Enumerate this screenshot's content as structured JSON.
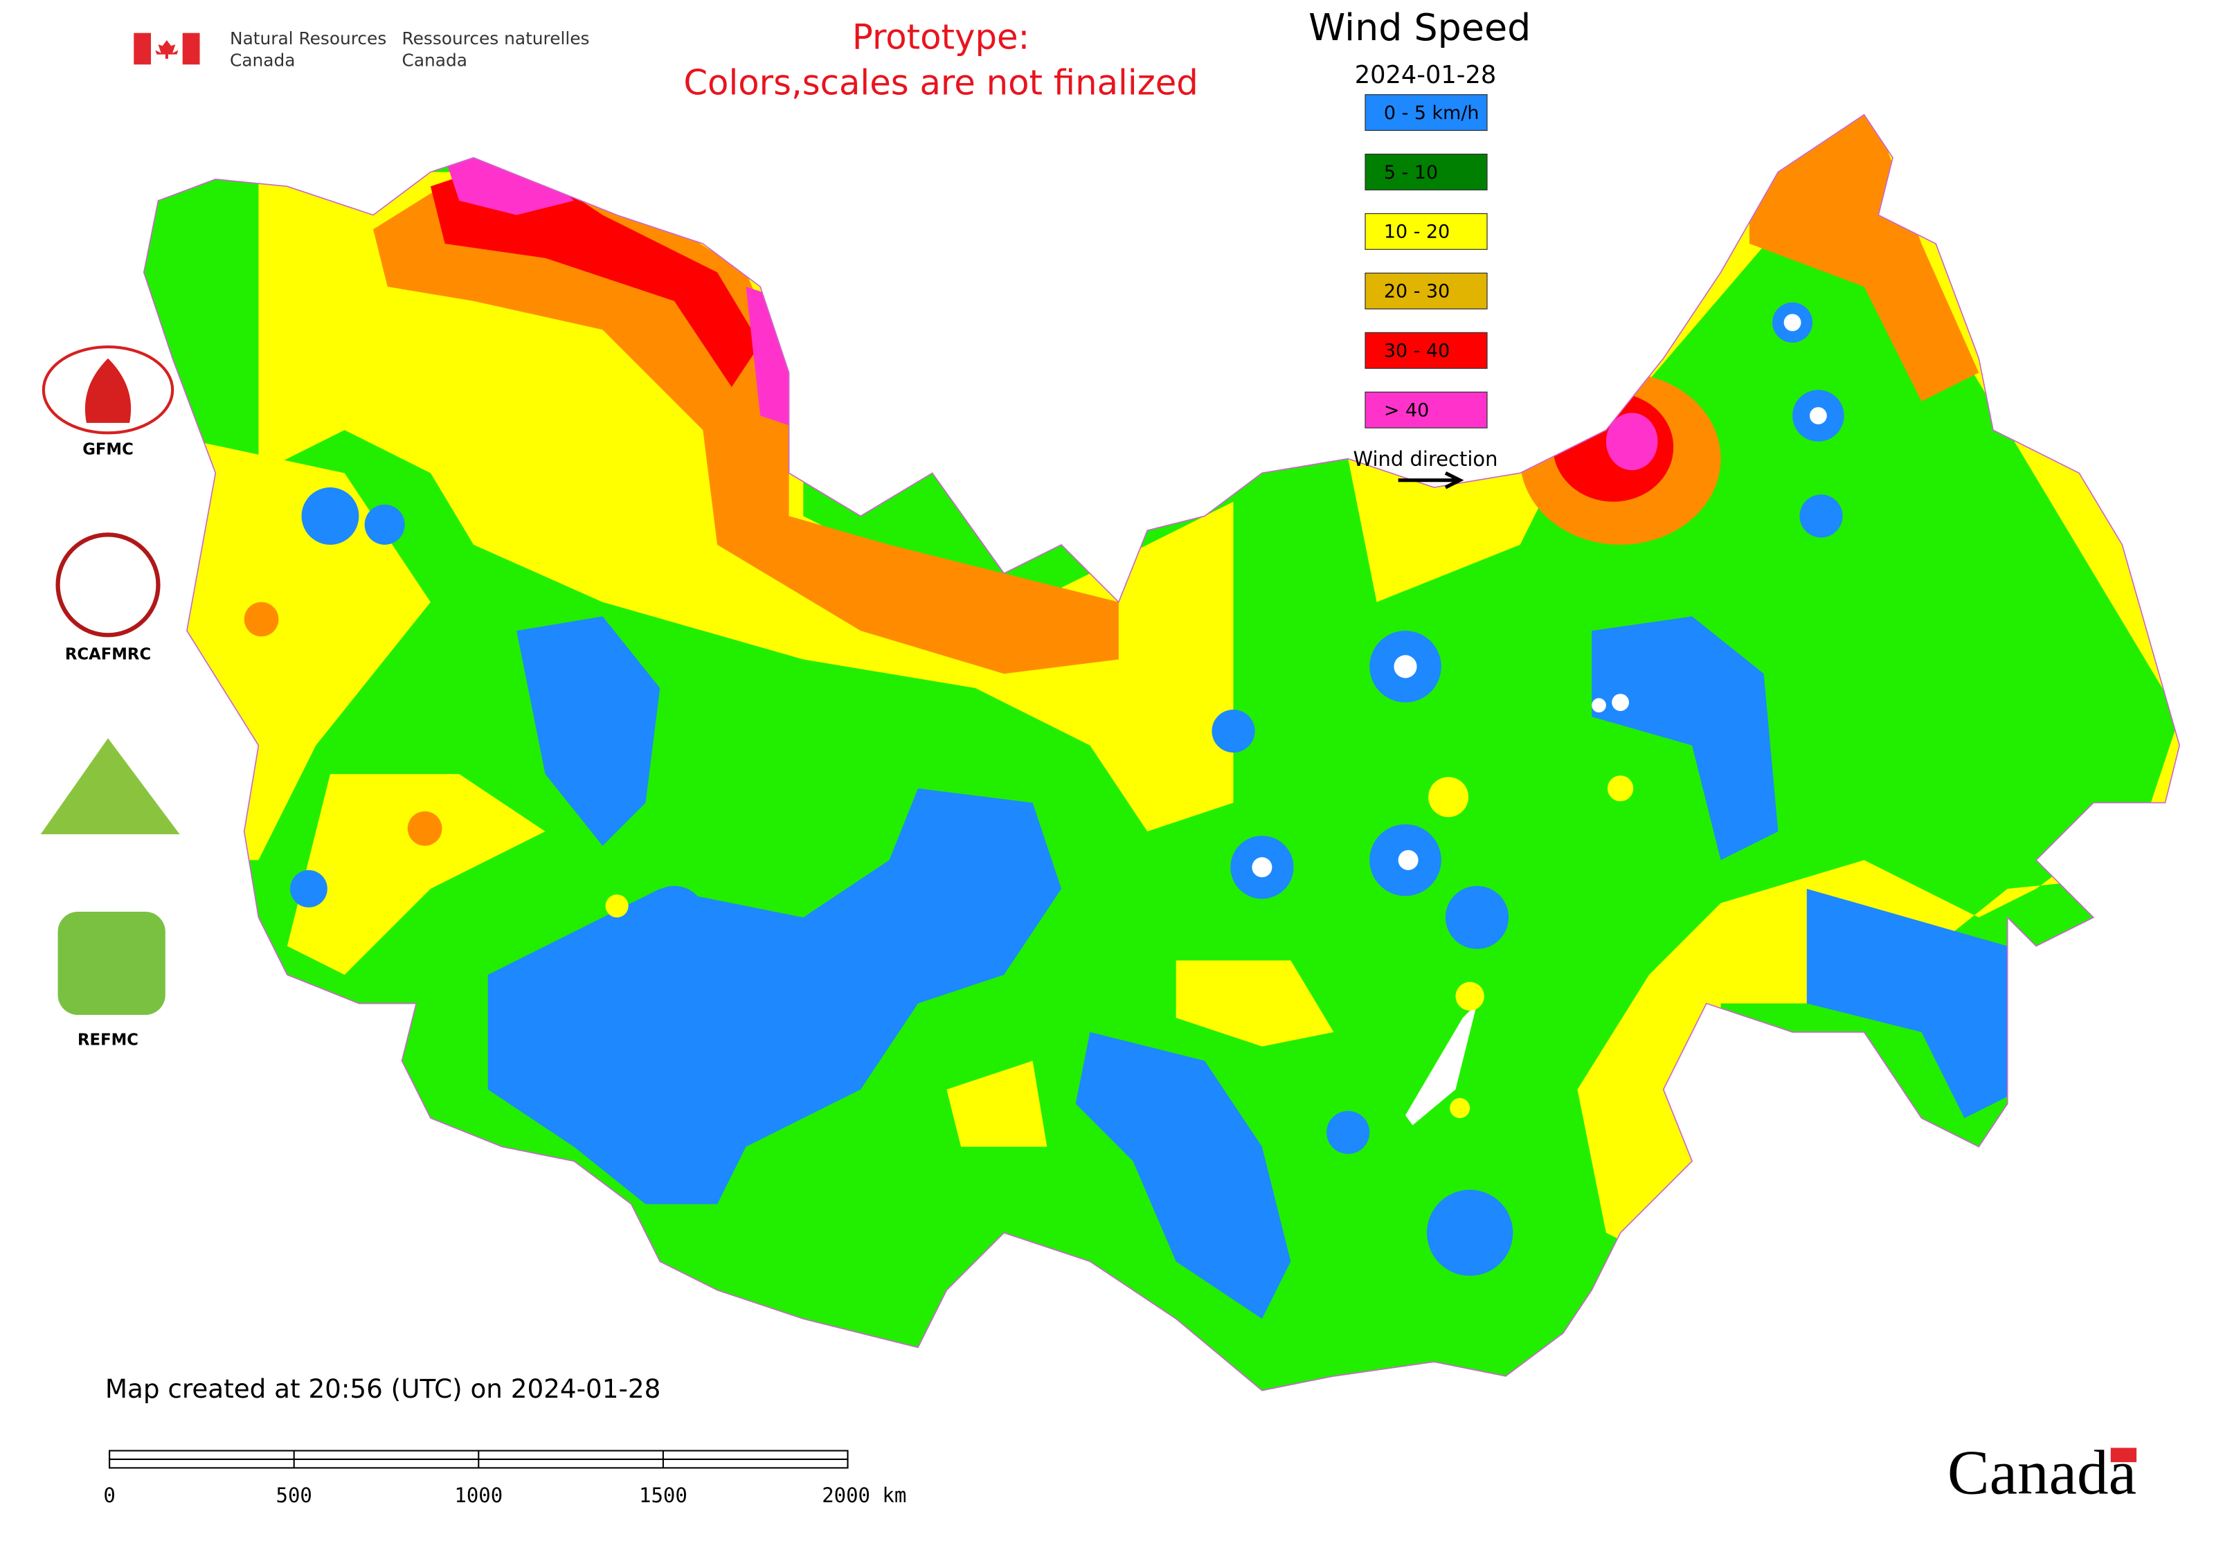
{
  "header": {
    "org_en": [
      "Natural Resources",
      "Canada"
    ],
    "org_fr": [
      "Ressources naturelles",
      "Canada"
    ],
    "notice": [
      "Prototype:",
      "Colors,scales are not finalized"
    ]
  },
  "legend": {
    "title": "Wind Speed",
    "date": "2024-01-28",
    "items": [
      {
        "label": "0 - 5 km/h",
        "color": "#1e88ff"
      },
      {
        "label": "5 - 10",
        "color": "#008000"
      },
      {
        "label": "10 - 20",
        "color": "#ffff00"
      },
      {
        "label": "20 - 30",
        "color": "#e0b400"
      },
      {
        "label": "30 - 40",
        "color": "#ff0000"
      },
      {
        "label": "> 40",
        "color": "#ff33cc"
      }
    ],
    "wind_direction": "Wind direction"
  },
  "logos": [
    "GFMC",
    "RCAFMRC",
    "REFMC"
  ],
  "footer": {
    "created": "Map created at 20:56 (UTC) on 2024-01-28",
    "scale_labels": [
      "0",
      "500",
      "1000",
      "1500",
      "2000 km"
    ],
    "wordmark": "Canada"
  }
}
